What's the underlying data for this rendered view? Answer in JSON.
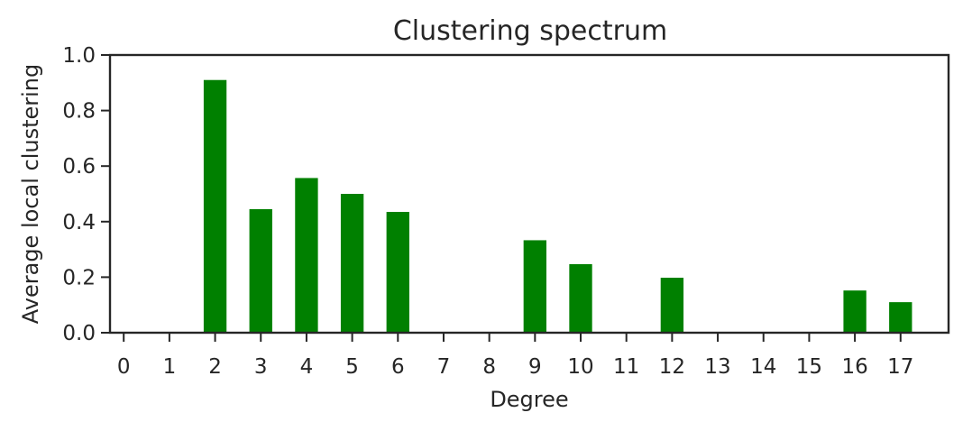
{
  "chart_data": {
    "type": "bar",
    "title": "Clustering spectrum",
    "xlabel": "Degree",
    "ylabel": "Average local clustering",
    "x_ticks": [
      "0",
      "1",
      "2",
      "3",
      "4",
      "5",
      "6",
      "7",
      "8",
      "9",
      "10",
      "11",
      "12",
      "13",
      "14",
      "15",
      "16",
      "17"
    ],
    "y_ticks": [
      "0.0",
      "0.2",
      "0.4",
      "0.6",
      "0.8",
      "1.0"
    ],
    "xlim": [
      -0.3,
      18.05
    ],
    "ylim": [
      0,
      1.0
    ],
    "grid": false,
    "bar_color": "#008000",
    "series": [
      {
        "x": [
          2,
          3,
          4,
          5,
          6,
          9,
          10,
          12,
          16,
          17
        ],
        "values": [
          0.91,
          0.445,
          0.557,
          0.5,
          0.435,
          0.333,
          0.247,
          0.198,
          0.152,
          0.11
        ]
      }
    ]
  }
}
